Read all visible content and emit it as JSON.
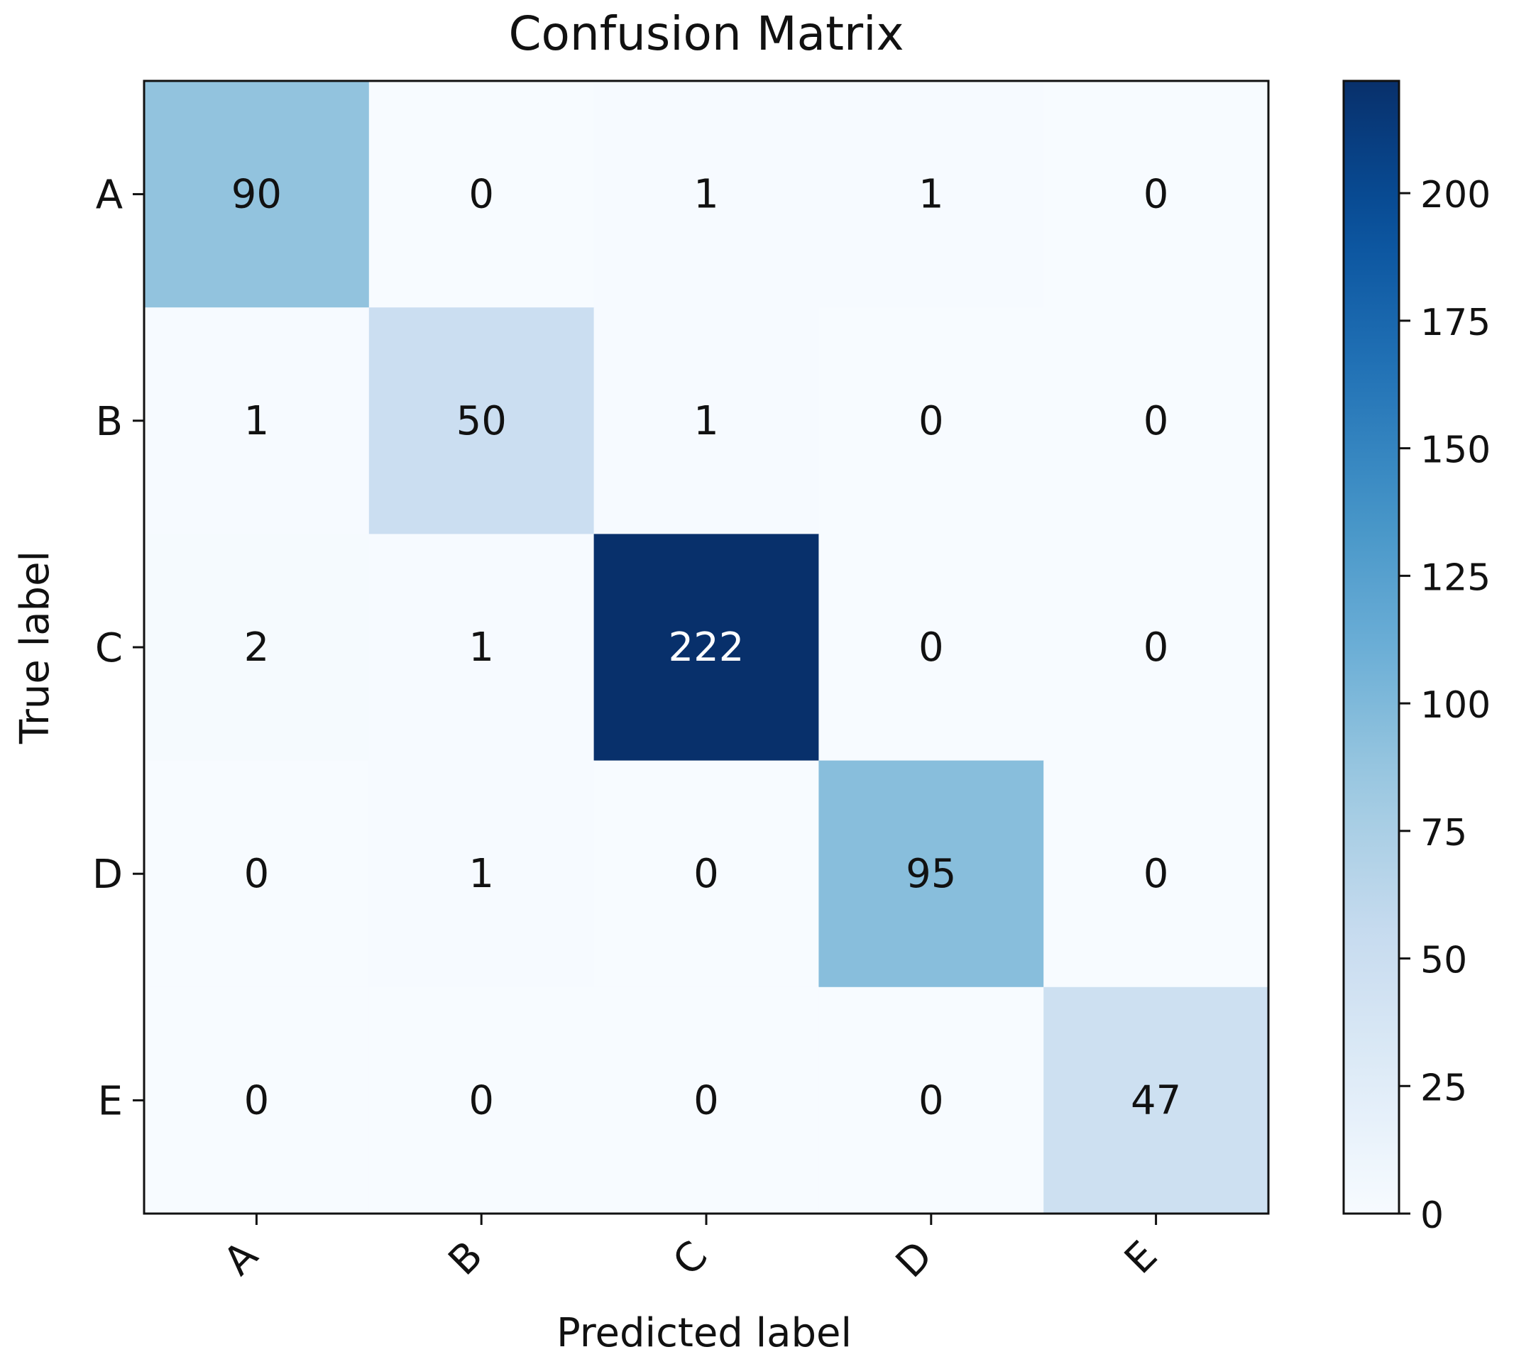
{
  "chart_data": {
    "type": "heatmap",
    "title": "Confusion Matrix",
    "xlabel": "Predicted label",
    "ylabel": "True label",
    "x_categories": [
      "A",
      "B",
      "C",
      "D",
      "E"
    ],
    "y_categories": [
      "A",
      "B",
      "C",
      "D",
      "E"
    ],
    "matrix": [
      [
        90,
        0,
        1,
        1,
        0
      ],
      [
        1,
        50,
        1,
        0,
        0
      ],
      [
        2,
        1,
        222,
        0,
        0
      ],
      [
        0,
        1,
        0,
        95,
        0
      ],
      [
        0,
        0,
        0,
        0,
        47
      ]
    ],
    "colormap": "Blues",
    "colorbar": {
      "min": 0,
      "max": 222,
      "ticks": [
        0,
        25,
        50,
        75,
        100,
        125,
        150,
        175,
        200
      ]
    },
    "colors": {
      "text_dark": "#111111",
      "text_light": "#ffffff",
      "axis": "#111111"
    }
  }
}
